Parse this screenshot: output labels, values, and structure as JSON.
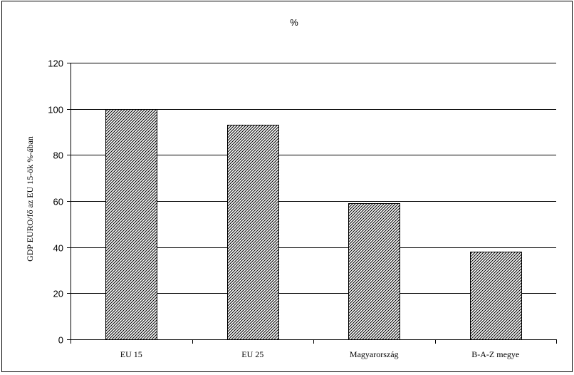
{
  "chart_data": {
    "type": "bar",
    "title": "%",
    "ylabel": "GDP EURO/fő az EU 15-ök %-ában",
    "xlabel": "",
    "categories": [
      "EU 15",
      "EU 25",
      "Magyarország",
      "B-A-Z megye"
    ],
    "values": [
      100,
      93,
      59,
      38
    ],
    "ylim": [
      0,
      120
    ],
    "yticks": [
      0,
      20,
      40,
      60,
      80,
      100,
      120
    ],
    "grid": true,
    "legend": "none",
    "bar_fill": "diagonal-hatch",
    "colors": {
      "bar_stroke": "#000000",
      "hatch": "#000000",
      "grid": "#000000",
      "background": "#ffffff"
    }
  }
}
